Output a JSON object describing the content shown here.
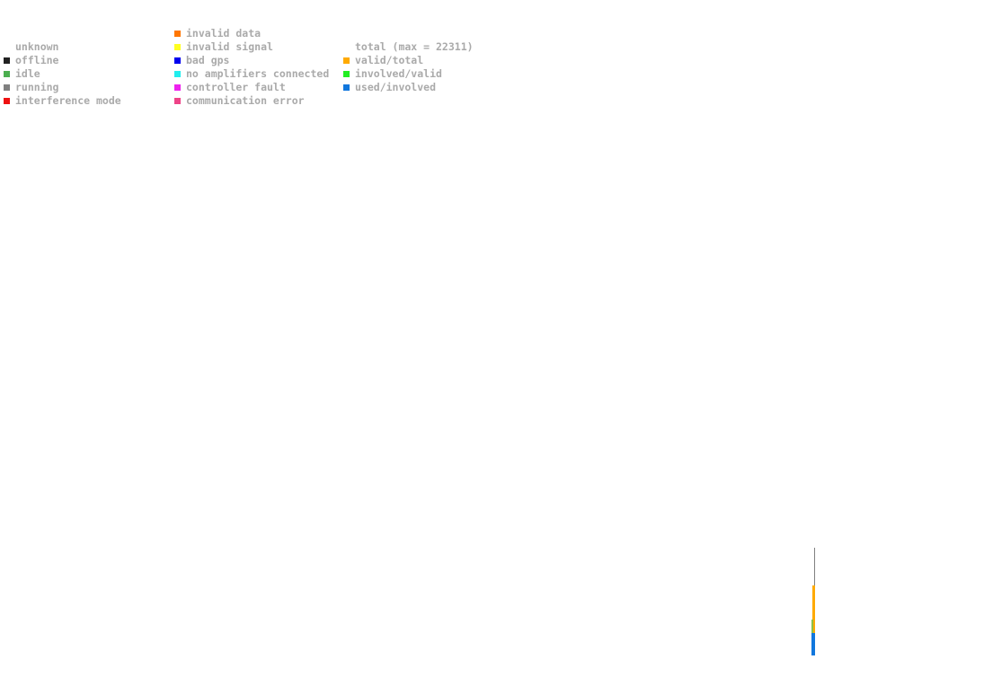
{
  "legend": {
    "columns": [
      {
        "items": [
          {
            "label": "unknown"
          },
          {
            "label": "offline",
            "color": "#222222"
          },
          {
            "label": "idle",
            "color": "#4caf50"
          },
          {
            "label": "running",
            "color": "#808080"
          },
          {
            "label": "interference mode",
            "color": "#ee1111"
          }
        ]
      },
      {
        "items": [
          {
            "label": "invalid data",
            "color": "#ff7700"
          },
          {
            "label": "invalid signal",
            "color": "#ffff22"
          },
          {
            "label": "bad gps",
            "color": "#0000ee"
          },
          {
            "label": "no amplifiers connected",
            "color": "#22eeee"
          },
          {
            "label": "controller fault",
            "color": "#ee22ee"
          },
          {
            "label": "communication error",
            "color": "#ee4488"
          }
        ]
      },
      {
        "items": [
          {
            "label": "total (max = 22311)"
          },
          {
            "label": "valid/total",
            "color": "#ffaa00"
          },
          {
            "label": "involved/valid",
            "color": "#22ee22"
          },
          {
            "label": "used/involved",
            "color": "#1177dd"
          }
        ]
      }
    ]
  }
}
